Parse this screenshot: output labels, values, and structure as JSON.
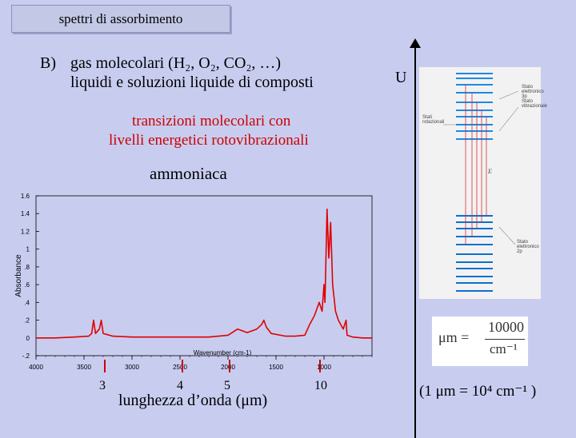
{
  "slide": {
    "title": "spettri di assorbimento",
    "item_label": "B)",
    "line1": "gas molecolari (H₂, O₂, CO₂, …)",
    "line2": "liquidi e soluzioni liquide di composti",
    "red_line1": "transizioni molecolari con",
    "red_line2": "livelli energetici rotovibrazionali",
    "sample": "ammoniaca",
    "u_label": "U",
    "wavelength_label": "lunghezza d’onda (μm)",
    "wl_marks": [
      "3",
      "4",
      "5",
      "10"
    ],
    "conversion": "(1 μm = 10⁴ cm⁻¹ )"
  },
  "formula": {
    "lhs": "μm =",
    "numerator": "10000",
    "denominator": "cm⁻¹"
  },
  "diagram": {
    "stati_rot": "Stati rotazionali",
    "stato_vib": "Stato vibrazionale",
    "stato_el1": "Stato elettronico 3p",
    "stato_el2": "Stato elettronico 2p",
    "e_label": "E",
    "colors": {
      "upper_levels": "#1e88e5",
      "lower_levels": "#0b6fd0",
      "transitions": "#d32f2f"
    }
  },
  "chart_data": {
    "type": "line",
    "ylabel": "Absorbance",
    "xlabel": "Wavenumber (cm-1)",
    "x_ticks": [
      "4000",
      "3500",
      "3000",
      "2500",
      "2000",
      "1500",
      "1000"
    ],
    "y_ticks": [
      "1.6",
      "1.4",
      "1.2",
      "1",
      ".8",
      ".6",
      ".4",
      ".2",
      "0",
      "-.2"
    ],
    "xlim": [
      4000,
      500
    ],
    "ylim": [
      -0.2,
      1.6
    ],
    "grid": false,
    "series": [
      {
        "color": "#e00000",
        "x": [
          4000,
          3800,
          3600,
          3450,
          3420,
          3400,
          3380,
          3340,
          3320,
          3300,
          3200,
          3000,
          2900,
          2700,
          2500,
          2400,
          2200,
          2000,
          1900,
          1800,
          1700,
          1650,
          1627,
          1600,
          1550,
          1400,
          1300,
          1200,
          1150,
          1100,
          1050,
          1020,
          1000,
          990,
          968,
          950,
          931,
          910,
          880,
          850,
          800,
          770,
          760,
          700,
          600,
          500
        ],
        "y": [
          0,
          0,
          0.01,
          0.02,
          0.05,
          0.2,
          0.05,
          0.1,
          0.2,
          0.05,
          0.02,
          0.01,
          0.01,
          0.01,
          0.01,
          0.01,
          0.01,
          0.03,
          0.1,
          0.06,
          0.1,
          0.15,
          0.2,
          0.12,
          0.05,
          0.02,
          0.02,
          0.03,
          0.15,
          0.25,
          0.4,
          0.3,
          0.6,
          0.4,
          1.45,
          0.9,
          1.3,
          0.6,
          0.3,
          0.2,
          0.1,
          0.2,
          0.03,
          0.01,
          0,
          0
        ]
      }
    ]
  }
}
